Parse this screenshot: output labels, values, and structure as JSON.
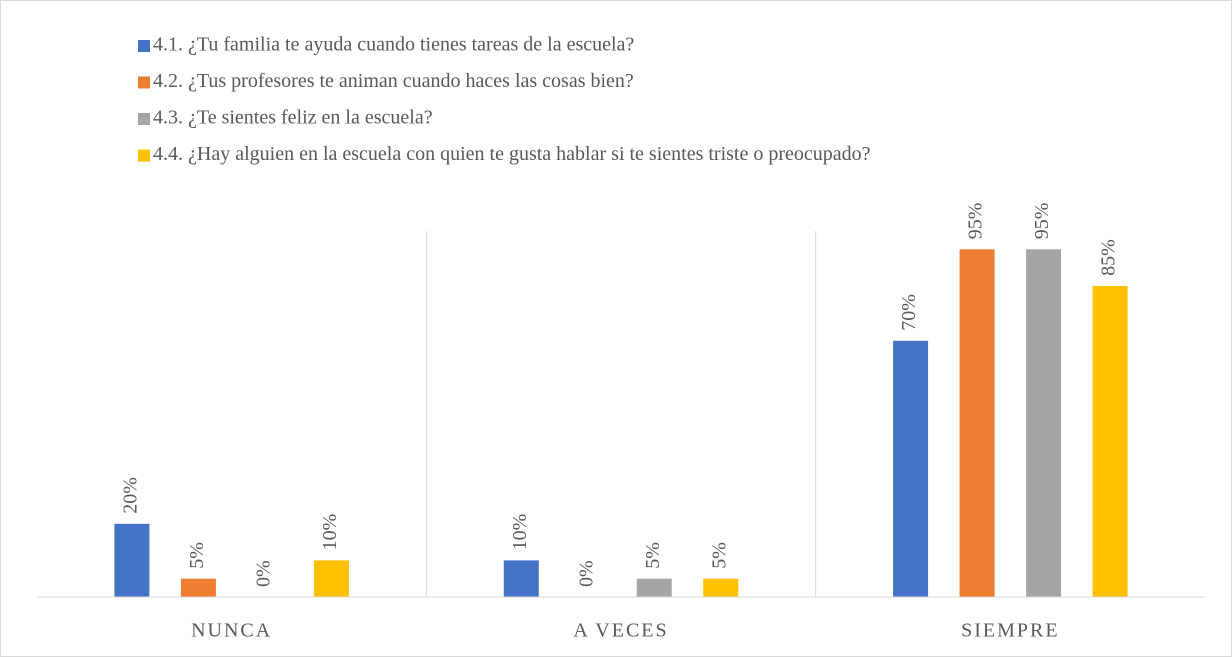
{
  "chart_data": {
    "type": "bar",
    "categories": [
      "NUNCA",
      "A VECES",
      "SIEMPRE"
    ],
    "series": [
      {
        "name": "4.1. ¿Tu familia te ayuda cuando tienes tareas de la escuela?",
        "color": "#4472c4",
        "values": [
          20,
          10,
          70
        ],
        "value_labels": [
          "20%",
          "10%",
          "70%"
        ]
      },
      {
        "name": "4.2. ¿Tus profesores te animan cuando haces las cosas bien?",
        "color": "#ed7d31",
        "values": [
          5,
          0,
          95
        ],
        "value_labels": [
          "5%",
          "0%",
          "95%"
        ]
      },
      {
        "name": "4.3. ¿Te sientes feliz en la escuela?",
        "color": "#a5a5a5",
        "values": [
          0,
          5,
          95
        ],
        "value_labels": [
          "0%",
          "5%",
          "95%"
        ]
      },
      {
        "name": "4.4. ¿Hay alguien en la escuela con quien te gusta hablar si te sientes triste o preocupado?",
        "color": "#ffc000",
        "values": [
          10,
          5,
          85
        ],
        "value_labels": [
          "10%",
          "5%",
          "85%"
        ]
      }
    ],
    "ylim": [
      0,
      100
    ]
  }
}
